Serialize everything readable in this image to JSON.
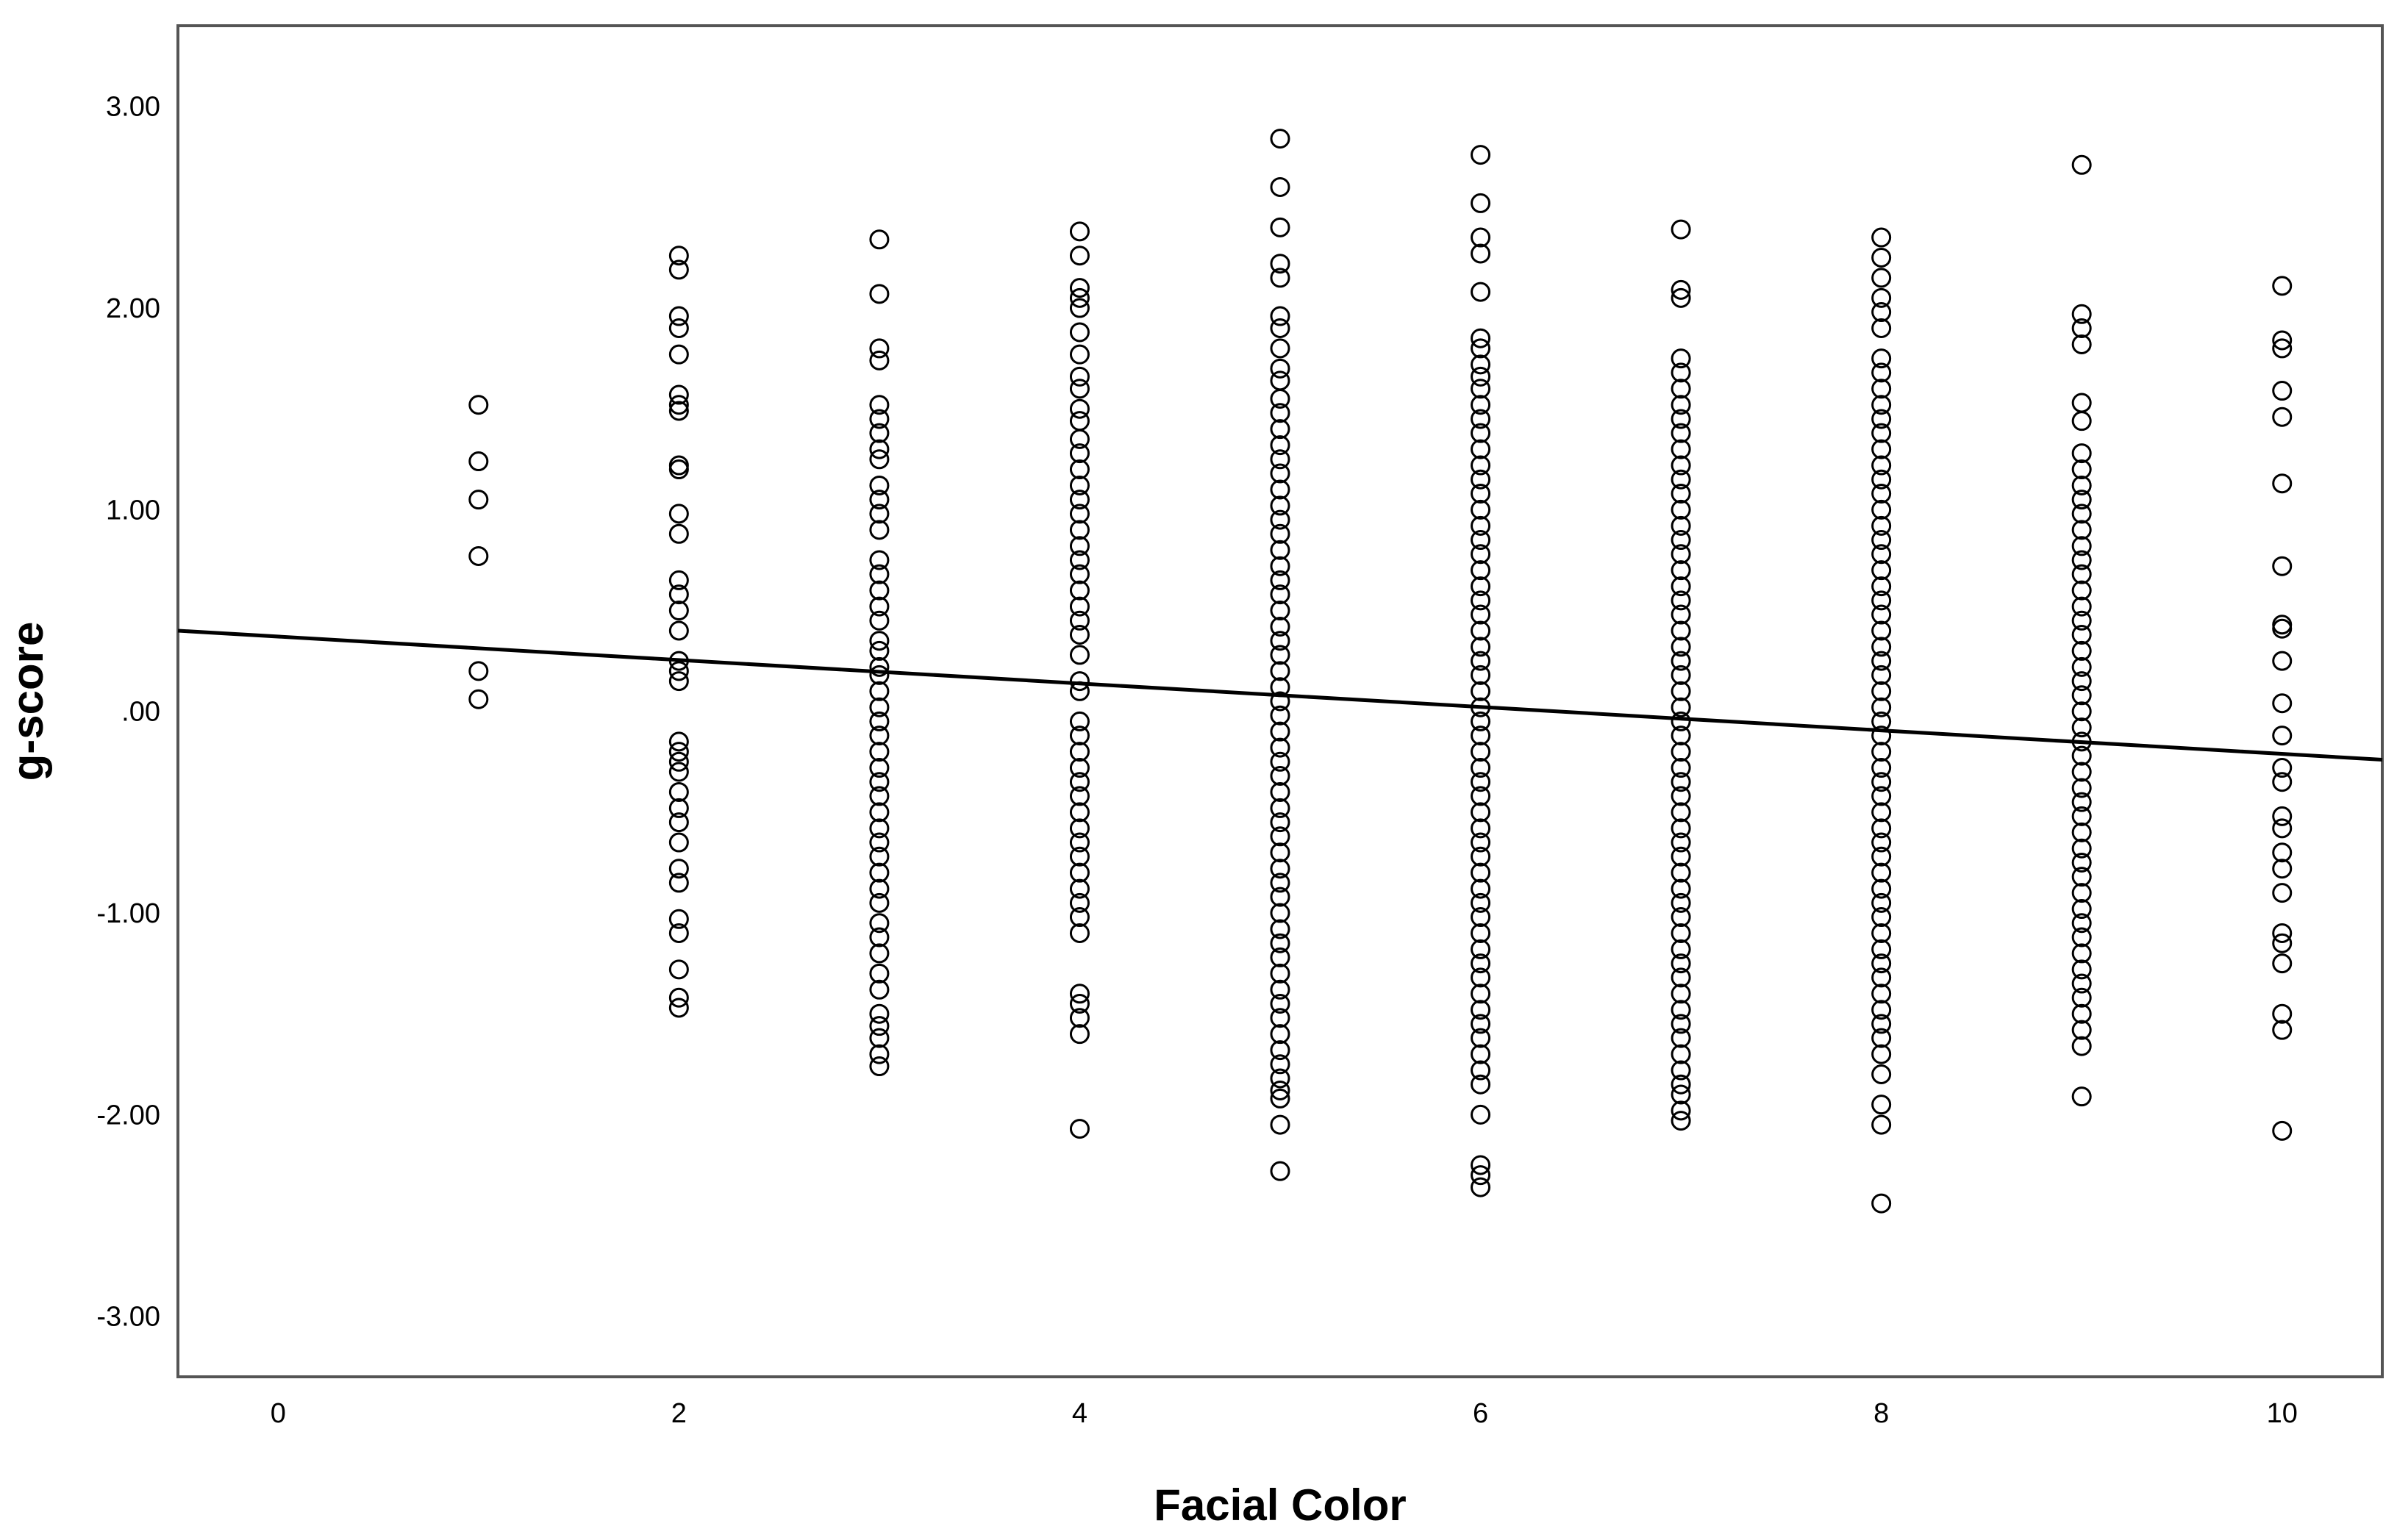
{
  "chart_data": {
    "type": "scatter",
    "title": "",
    "xlabel": "Facial Color",
    "ylabel": "g-score",
    "xlim": [
      -0.5,
      10.5
    ],
    "ylim": [
      -3.3,
      3.4
    ],
    "x_ticks": [
      0,
      2,
      4,
      6,
      8,
      10
    ],
    "y_ticks": [
      3,
      2,
      1,
      0,
      -1,
      -2,
      -3
    ],
    "x_tick_labels": [
      "0",
      "2",
      "4",
      "6",
      "8",
      "10"
    ],
    "y_tick_labels": [
      "3.00",
      "2.00",
      "1.00",
      ".00",
      "-1.00",
      "-2.00",
      "-3.00"
    ],
    "grid": false,
    "marker": "open-circle",
    "fit_line": {
      "x": [
        -0.5,
        10.5
      ],
      "y": [
        0.4,
        -0.24
      ]
    },
    "series": [
      {
        "x": 1,
        "y": [
          1.52,
          1.24,
          1.05,
          0.77,
          0.2,
          0.06
        ]
      },
      {
        "x": 2,
        "y": [
          2.26,
          2.19,
          1.96,
          1.9,
          1.77,
          1.57,
          1.52,
          1.49,
          1.22,
          1.2,
          0.98,
          0.88,
          0.65,
          0.58,
          0.5,
          0.4,
          0.25,
          0.2,
          0.15,
          -0.15,
          -0.2,
          -0.25,
          -0.3,
          -0.4,
          -0.48,
          -0.55,
          -0.65,
          -0.78,
          -0.85,
          -1.03,
          -1.1,
          -1.28,
          -1.42,
          -1.47
        ]
      },
      {
        "x": 3,
        "y": [
          2.34,
          2.07,
          1.8,
          1.74,
          1.52,
          1.45,
          1.38,
          1.3,
          1.25,
          1.12,
          1.05,
          0.98,
          0.9,
          0.75,
          0.68,
          0.6,
          0.52,
          0.45,
          0.35,
          0.3,
          0.22,
          0.18,
          0.1,
          0.02,
          -0.05,
          -0.12,
          -0.2,
          -0.28,
          -0.35,
          -0.42,
          -0.5,
          -0.58,
          -0.65,
          -0.72,
          -0.8,
          -0.88,
          -0.95,
          -1.05,
          -1.12,
          -1.2,
          -1.3,
          -1.38,
          -1.5,
          -1.56,
          -1.62,
          -1.7,
          -1.76
        ]
      },
      {
        "x": 4,
        "y": [
          2.38,
          2.26,
          2.1,
          2.05,
          2.0,
          1.88,
          1.77,
          1.66,
          1.6,
          1.5,
          1.44,
          1.35,
          1.28,
          1.2,
          1.12,
          1.05,
          0.98,
          0.9,
          0.82,
          0.75,
          0.68,
          0.6,
          0.52,
          0.45,
          0.38,
          0.28,
          0.15,
          0.1,
          -0.05,
          -0.12,
          -0.2,
          -0.28,
          -0.35,
          -0.42,
          -0.5,
          -0.58,
          -0.65,
          -0.72,
          -0.8,
          -0.88,
          -0.95,
          -1.02,
          -1.1,
          -1.4,
          -1.45,
          -1.52,
          -1.6,
          -2.07
        ]
      },
      {
        "x": 5,
        "y": [
          2.84,
          2.6,
          2.4,
          2.22,
          2.15,
          1.96,
          1.9,
          1.8,
          1.7,
          1.64,
          1.55,
          1.48,
          1.4,
          1.32,
          1.25,
          1.18,
          1.1,
          1.02,
          0.95,
          0.88,
          0.8,
          0.72,
          0.65,
          0.58,
          0.5,
          0.42,
          0.35,
          0.28,
          0.2,
          0.12,
          0.05,
          -0.02,
          -0.1,
          -0.18,
          -0.25,
          -0.32,
          -0.4,
          -0.48,
          -0.55,
          -0.62,
          -0.7,
          -0.78,
          -0.85,
          -0.92,
          -1.0,
          -1.08,
          -1.15,
          -1.22,
          -1.3,
          -1.38,
          -1.45,
          -1.52,
          -1.6,
          -1.68,
          -1.75,
          -1.82,
          -1.88,
          -1.92,
          -2.05,
          -2.28
        ]
      },
      {
        "x": 6,
        "y": [
          2.76,
          2.52,
          2.35,
          2.27,
          2.08,
          1.85,
          1.8,
          1.72,
          1.66,
          1.6,
          1.52,
          1.45,
          1.38,
          1.3,
          1.22,
          1.15,
          1.08,
          1.0,
          0.92,
          0.85,
          0.78,
          0.7,
          0.62,
          0.55,
          0.48,
          0.4,
          0.32,
          0.25,
          0.18,
          0.1,
          0.02,
          -0.05,
          -0.12,
          -0.2,
          -0.28,
          -0.35,
          -0.42,
          -0.5,
          -0.58,
          -0.65,
          -0.72,
          -0.8,
          -0.88,
          -0.95,
          -1.02,
          -1.1,
          -1.18,
          -1.25,
          -1.32,
          -1.4,
          -1.48,
          -1.55,
          -1.62,
          -1.7,
          -1.78,
          -1.85,
          -2.0,
          -2.25,
          -2.3,
          -2.36
        ]
      },
      {
        "x": 7,
        "y": [
          2.39,
          2.09,
          2.05,
          1.75,
          1.68,
          1.6,
          1.52,
          1.45,
          1.38,
          1.3,
          1.22,
          1.15,
          1.08,
          1.0,
          0.92,
          0.85,
          0.78,
          0.7,
          0.62,
          0.55,
          0.48,
          0.4,
          0.32,
          0.25,
          0.18,
          0.1,
          0.02,
          -0.05,
          -0.12,
          -0.2,
          -0.28,
          -0.35,
          -0.42,
          -0.5,
          -0.58,
          -0.65,
          -0.72,
          -0.8,
          -0.88,
          -0.95,
          -1.02,
          -1.1,
          -1.18,
          -1.25,
          -1.32,
          -1.4,
          -1.48,
          -1.55,
          -1.62,
          -1.7,
          -1.78,
          -1.85,
          -1.9,
          -1.98,
          -2.03
        ]
      },
      {
        "x": 8,
        "y": [
          2.35,
          2.25,
          2.15,
          2.05,
          1.98,
          1.9,
          1.75,
          1.68,
          1.6,
          1.52,
          1.45,
          1.38,
          1.3,
          1.22,
          1.15,
          1.08,
          1.0,
          0.92,
          0.85,
          0.78,
          0.7,
          0.62,
          0.55,
          0.48,
          0.4,
          0.32,
          0.25,
          0.18,
          0.1,
          0.02,
          -0.05,
          -0.12,
          -0.2,
          -0.28,
          -0.35,
          -0.42,
          -0.5,
          -0.58,
          -0.65,
          -0.72,
          -0.8,
          -0.88,
          -0.95,
          -1.02,
          -1.1,
          -1.18,
          -1.25,
          -1.32,
          -1.4,
          -1.48,
          -1.55,
          -1.62,
          -1.7,
          -1.8,
          -1.95,
          -2.05,
          -2.44
        ]
      },
      {
        "x": 9,
        "y": [
          2.71,
          1.97,
          1.9,
          1.82,
          1.53,
          1.44,
          1.28,
          1.2,
          1.12,
          1.05,
          0.98,
          0.9,
          0.82,
          0.75,
          0.68,
          0.6,
          0.52,
          0.45,
          0.38,
          0.3,
          0.22,
          0.15,
          0.08,
          0.0,
          -0.08,
          -0.15,
          -0.22,
          -0.3,
          -0.38,
          -0.45,
          -0.52,
          -0.6,
          -0.68,
          -0.75,
          -0.82,
          -0.9,
          -0.98,
          -1.05,
          -1.12,
          -1.2,
          -1.28,
          -1.35,
          -1.42,
          -1.5,
          -1.58,
          -1.66,
          -1.91
        ]
      },
      {
        "x": 10,
        "y": [
          2.11,
          1.84,
          1.8,
          1.59,
          1.46,
          1.13,
          0.72,
          0.43,
          0.41,
          0.25,
          0.04,
          -0.12,
          -0.28,
          -0.35,
          -0.52,
          -0.58,
          -0.7,
          -0.78,
          -0.9,
          -1.1,
          -1.15,
          -1.25,
          -1.5,
          -1.58,
          -2.08
        ]
      }
    ]
  }
}
